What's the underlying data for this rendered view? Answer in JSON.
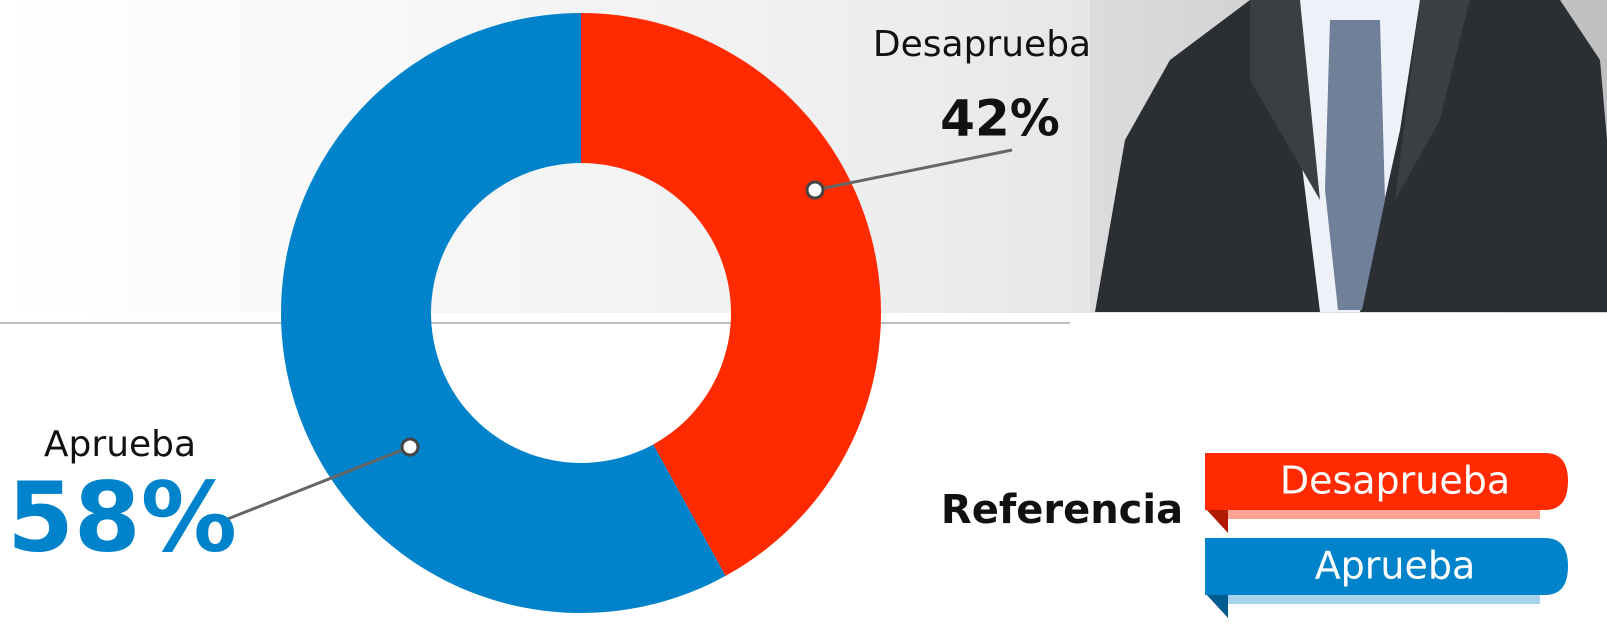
{
  "chart_data": {
    "type": "pie",
    "donut": true,
    "categories": [
      "Desaprueba",
      "Aprueba"
    ],
    "values": [
      42,
      58
    ],
    "value_labels": [
      "42%",
      "58%"
    ],
    "colors": [
      "#ff2a00",
      "#0083cb"
    ],
    "legend_title": "Referencia"
  }
}
